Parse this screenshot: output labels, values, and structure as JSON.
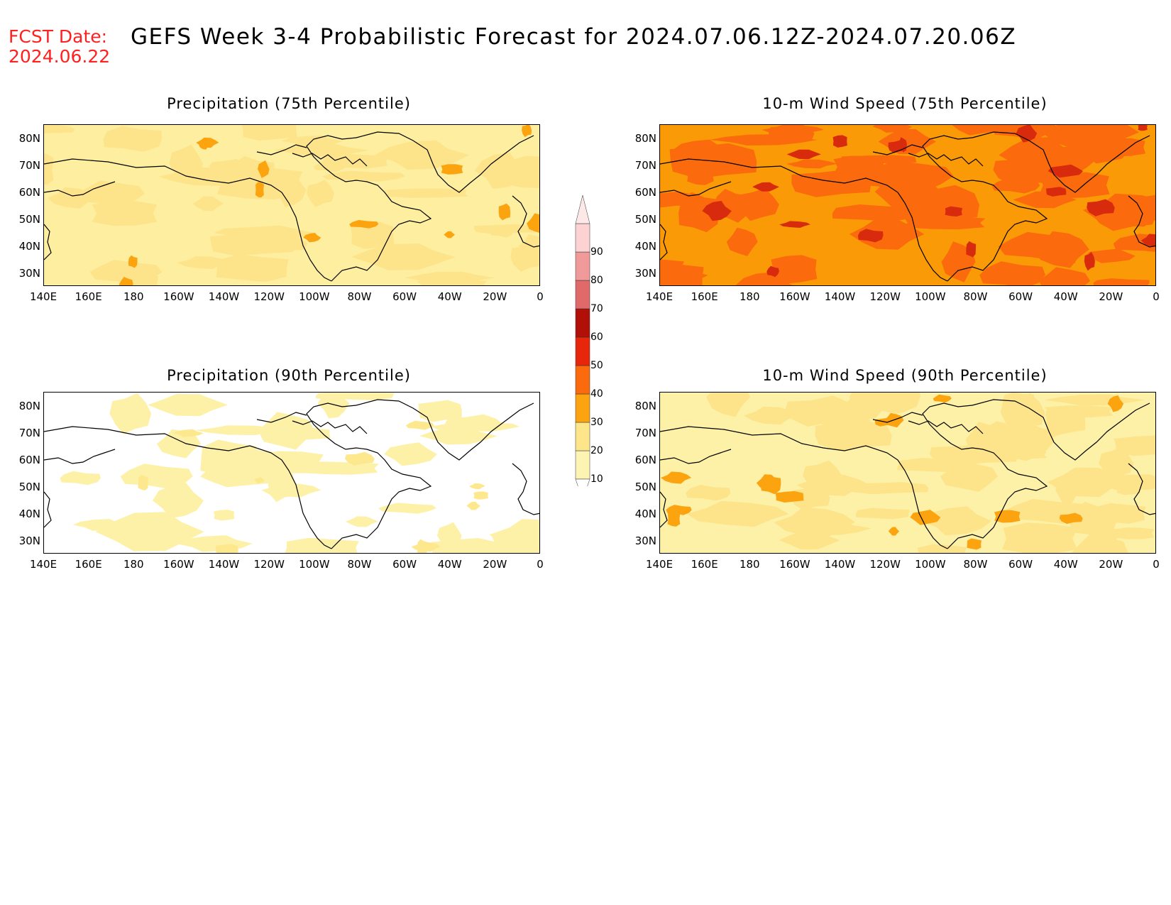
{
  "header": {
    "fcst_label": "FCST Date:",
    "fcst_date": "2024.06.22",
    "title": "GEFS Week 3-4 Probabilistic Forecast for 2024.07.06.12Z-2024.07.20.06Z"
  },
  "panels": [
    {
      "title": "Precipitation (75th Percentile)",
      "base_color": "#fdeea0",
      "patch_color": "#fde48a",
      "accent_color": "#fba410"
    },
    {
      "title": "10-m Wind Speed (75th Percentile)",
      "base_color": "#fb9a07",
      "patch_color": "#fb6a0c",
      "accent_color": "#d82a0c"
    },
    {
      "title": "Precipitation (90th Percentile)",
      "base_color": "#ffffff",
      "patch_color": "#fdf1a8",
      "accent_color": "#fde88e"
    },
    {
      "title": "10-m Wind Speed (90th Percentile)",
      "base_color": "#fdf1a8",
      "patch_color": "#fde48a",
      "accent_color": "#fba410"
    }
  ],
  "lat_labels": [
    "80N",
    "70N",
    "60N",
    "50N",
    "40N",
    "30N"
  ],
  "lon_labels": [
    "140E",
    "160E",
    "180",
    "160W",
    "140W",
    "120W",
    "100W",
    "80W",
    "60W",
    "40W",
    "20W",
    "0"
  ],
  "colorbar": {
    "levels": [
      "10",
      "20",
      "30",
      "40",
      "50",
      "60",
      "70",
      "80",
      "90"
    ],
    "colors": [
      "#fdf3b3",
      "#fde58a",
      "#fba410",
      "#fb6a0c",
      "#e8260c",
      "#b01008",
      "#e06a6a",
      "#f09a9a",
      "#fcd2d2"
    ]
  }
}
